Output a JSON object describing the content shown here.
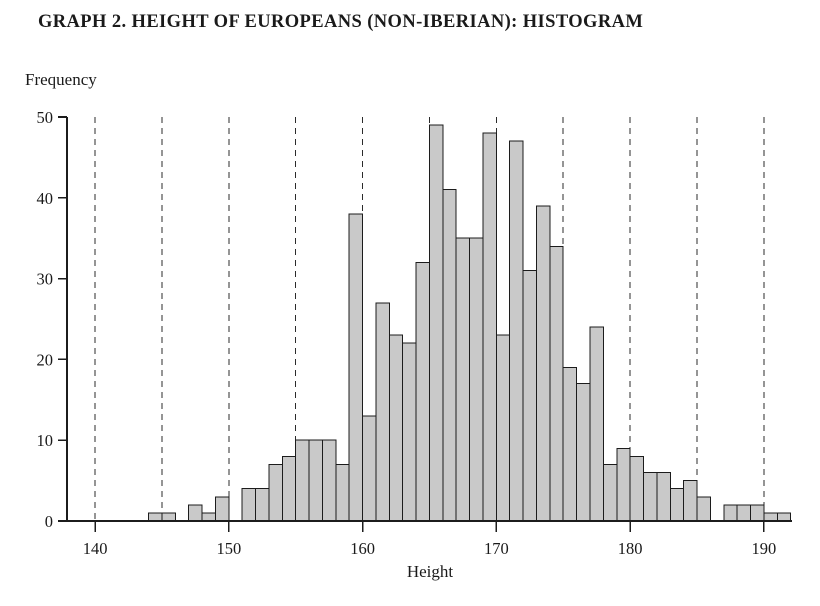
{
  "chart_data": {
    "type": "bar",
    "title": "GRAPH 2. HEIGHT OF EUROPEANS (NON-IBERIAN): HISTOGRAM",
    "xlabel": "Height",
    "ylabel": "Frequency",
    "xlim": [
      138,
      192
    ],
    "ylim": [
      0,
      50
    ],
    "x_ticks": [
      140,
      150,
      160,
      170,
      180,
      190
    ],
    "y_ticks": [
      0,
      10,
      20,
      30,
      40,
      50
    ],
    "gridlines_x": [
      140,
      145,
      150,
      155,
      160,
      165,
      170,
      175,
      180,
      185,
      190
    ],
    "grid_style": "dashed-vertical",
    "legend": "none",
    "bar_fill": "#c9c9c9",
    "bar_stroke": "#1c1c1c",
    "bin_width": 1,
    "bin_starts": [
      144,
      145,
      146,
      147,
      148,
      149,
      150,
      151,
      152,
      153,
      154,
      155,
      156,
      157,
      158,
      159,
      160,
      161,
      162,
      163,
      164,
      165,
      166,
      167,
      168,
      169,
      170,
      171,
      172,
      173,
      174,
      175,
      176,
      177,
      178,
      179,
      180,
      181,
      182,
      183,
      184,
      185,
      186,
      187,
      188,
      189,
      190,
      191
    ],
    "frequencies": [
      1,
      1,
      0,
      2,
      1,
      3,
      0,
      4,
      4,
      7,
      8,
      10,
      10,
      10,
      7,
      38,
      13,
      27,
      23,
      22,
      32,
      49,
      41,
      35,
      35,
      48,
      23,
      47,
      31,
      39,
      34,
      19,
      17,
      24,
      7,
      9,
      8,
      6,
      6,
      4,
      5,
      3,
      0,
      2,
      2,
      2,
      1,
      1
    ]
  }
}
